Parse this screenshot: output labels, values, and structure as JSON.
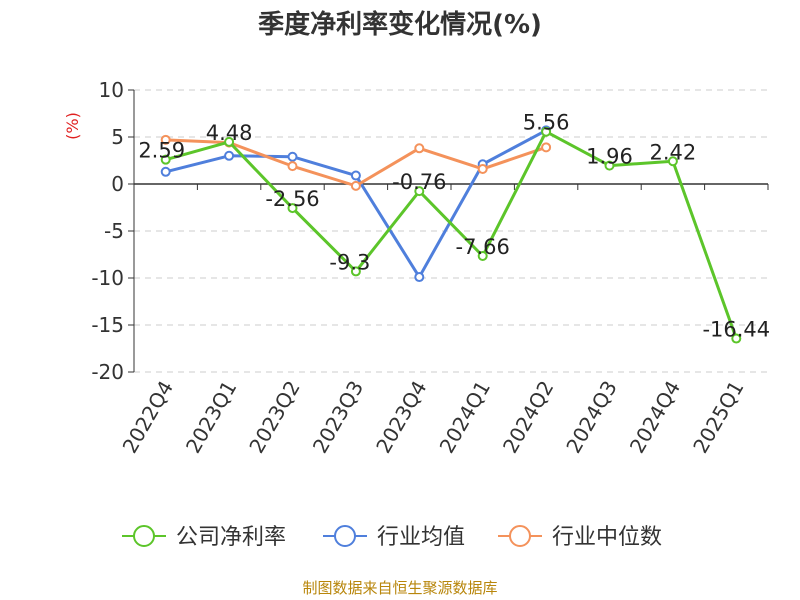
{
  "chart_data": {
    "type": "line",
    "title": "季度净利率变化情况(%)",
    "ylabel": "(%)",
    "xlabel": "",
    "categories": [
      "2022Q4",
      "2023Q1",
      "2023Q2",
      "2023Q3",
      "2023Q4",
      "2024Q1",
      "2024Q2",
      "2024Q3",
      "2024Q4",
      "2025Q1"
    ],
    "yticks": [
      "10",
      "5",
      "0",
      "-5",
      "-10",
      "-15",
      "-20"
    ],
    "ylim": [
      -20,
      10
    ],
    "grid": true,
    "legend_position": "bottom",
    "series": [
      {
        "name": "公司净利率",
        "color": "#5cc52a",
        "values": [
          2.59,
          4.48,
          -2.56,
          -9.3,
          -0.76,
          -7.66,
          5.56,
          1.96,
          2.42,
          -16.44
        ],
        "labels": [
          "2.59",
          "4.48",
          "-2.56",
          "-9.3",
          "-0.76",
          "-7.66",
          "5.56",
          "1.96",
          "2.42",
          "-16.44"
        ]
      },
      {
        "name": "行业均值",
        "color": "#4f7fdc",
        "values": [
          1.3,
          3.0,
          2.9,
          0.9,
          -9.9,
          2.1,
          5.7,
          null,
          null,
          null
        ]
      },
      {
        "name": "行业中位数",
        "color": "#f4925b",
        "values": [
          4.7,
          4.4,
          1.9,
          -0.2,
          3.8,
          1.6,
          3.9,
          null,
          null,
          null
        ]
      }
    ]
  },
  "footer": {
    "source": "制图数据来自恒生聚源数据库"
  }
}
